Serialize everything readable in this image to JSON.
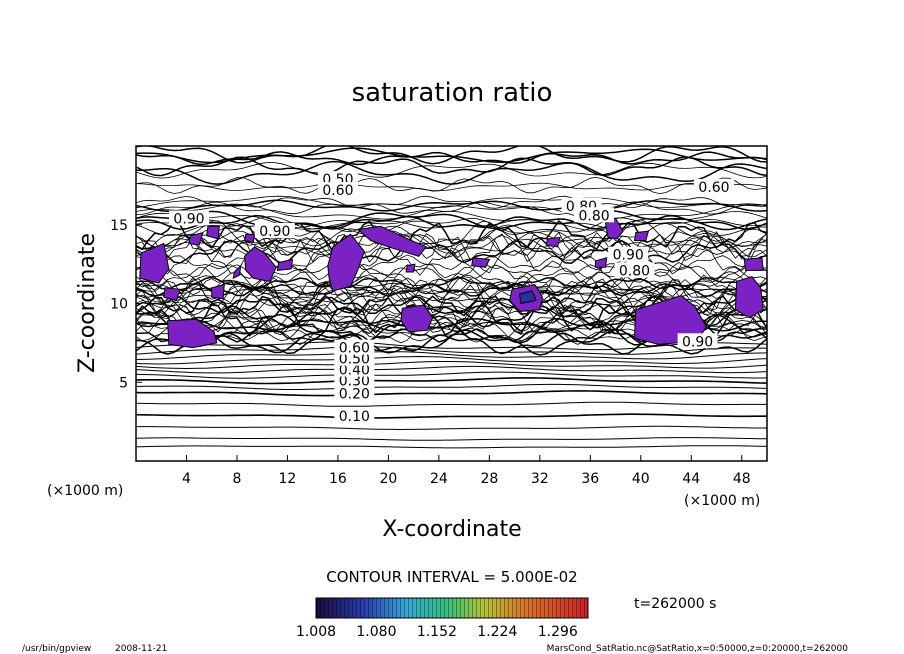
{
  "chart_data": {
    "type": "contour",
    "title": "saturation ratio",
    "xlabel": "X-coordinate",
    "ylabel": "Z-coordinate",
    "x_unit_left": "(×1000 m)",
    "x_unit_right": "(×1000 m)",
    "xlim": [
      0,
      50
    ],
    "ylim": [
      0,
      20
    ],
    "x_ticks": [
      4,
      8,
      12,
      16,
      20,
      24,
      28,
      32,
      36,
      40,
      44,
      48
    ],
    "y_ticks": [
      5,
      10,
      15
    ],
    "grid": false,
    "contour_interval_text": "CONTOUR INTERVAL = 5.000E-02",
    "time_text": "t=262000 s",
    "colorbar": {
      "range": [
        1.008,
        1.332
      ],
      "tick_labels": [
        "1.008",
        "1.080",
        "1.152",
        "1.224",
        "1.296"
      ]
    },
    "contour_labels": [
      {
        "text": "0.10",
        "x": 17.3,
        "y": 2.85
      },
      {
        "text": "0.20",
        "x": 17.3,
        "y": 4.3
      },
      {
        "text": "0.30",
        "x": 17.3,
        "y": 5.1
      },
      {
        "text": "0.40",
        "x": 17.3,
        "y": 5.8
      },
      {
        "text": "0.50",
        "x": 17.3,
        "y": 6.5
      },
      {
        "text": "0.60",
        "x": 17.3,
        "y": 7.2
      },
      {
        "text": "0.90",
        "x": 4.2,
        "y": 15.4
      },
      {
        "text": "0.90",
        "x": 11.0,
        "y": 14.6
      },
      {
        "text": "0.50",
        "x": 16.0,
        "y": 17.9
      },
      {
        "text": "0.60",
        "x": 16.0,
        "y": 17.2
      },
      {
        "text": "0.80",
        "x": 35.3,
        "y": 16.2
      },
      {
        "text": "0.80",
        "x": 36.3,
        "y": 15.6
      },
      {
        "text": "0.60",
        "x": 45.8,
        "y": 17.4
      },
      {
        "text": "0.90",
        "x": 39.0,
        "y": 13.1
      },
      {
        "text": "0.80",
        "x": 39.5,
        "y": 12.1
      },
      {
        "text": "0.90",
        "x": 44.5,
        "y": 7.6
      }
    ],
    "supersaturated_regions": [
      {
        "color": "#7b22c4",
        "points": [
          [
            0.4,
            13.2
          ],
          [
            2.2,
            13.8
          ],
          [
            2.6,
            12.2
          ],
          [
            1.8,
            11.3
          ],
          [
            0.3,
            11.6
          ]
        ]
      },
      {
        "color": "#7b22c4",
        "points": [
          [
            2.3,
            11.0
          ],
          [
            3.5,
            10.9
          ],
          [
            3.2,
            10.2
          ],
          [
            2.2,
            10.4
          ]
        ]
      },
      {
        "color": "#7b22c4",
        "points": [
          [
            2.5,
            8.9
          ],
          [
            4.8,
            9.0
          ],
          [
            6.2,
            8.2
          ],
          [
            6.4,
            7.5
          ],
          [
            4.5,
            7.2
          ],
          [
            2.6,
            7.4
          ]
        ]
      },
      {
        "color": "#7b22c4",
        "points": [
          [
            4.3,
            14.3
          ],
          [
            5.3,
            14.5
          ],
          [
            5.0,
            13.7
          ],
          [
            4.2,
            13.8
          ]
        ]
      },
      {
        "color": "#7b22c4",
        "points": [
          [
            5.7,
            14.9
          ],
          [
            6.6,
            14.9
          ],
          [
            6.5,
            14.1
          ],
          [
            5.6,
            14.3
          ]
        ]
      },
      {
        "color": "#7b22c4",
        "points": [
          [
            7.8,
            12.0
          ],
          [
            8.3,
            12.4
          ],
          [
            8.2,
            11.8
          ],
          [
            7.7,
            11.6
          ]
        ]
      },
      {
        "color": "#7b22c4",
        "points": [
          [
            6.0,
            11.0
          ],
          [
            7.0,
            11.2
          ],
          [
            6.9,
            10.3
          ],
          [
            6.0,
            10.4
          ]
        ]
      },
      {
        "color": "#7b22c4",
        "points": [
          [
            8.6,
            13.0
          ],
          [
            9.4,
            13.6
          ],
          [
            10.2,
            13.2
          ],
          [
            11.1,
            12.3
          ],
          [
            10.6,
            11.4
          ],
          [
            9.3,
            11.6
          ],
          [
            8.7,
            12.1
          ]
        ]
      },
      {
        "color": "#7b22c4",
        "points": [
          [
            11.3,
            12.6
          ],
          [
            12.4,
            12.8
          ],
          [
            12.3,
            12.2
          ],
          [
            11.2,
            12.1
          ]
        ]
      },
      {
        "color": "#7b22c4",
        "points": [
          [
            8.7,
            14.4
          ],
          [
            9.4,
            14.4
          ],
          [
            9.3,
            13.9
          ],
          [
            8.6,
            14.0
          ]
        ]
      },
      {
        "color": "#7b22c4",
        "points": [
          [
            15.6,
            13.6
          ],
          [
            17.0,
            14.4
          ],
          [
            18.1,
            13.3
          ],
          [
            17.5,
            12.0
          ],
          [
            17.0,
            11.1
          ],
          [
            15.6,
            10.8
          ],
          [
            15.3,
            11.6
          ],
          [
            15.2,
            12.4
          ]
        ]
      },
      {
        "color": "#7b22c4",
        "points": [
          [
            17.6,
            14.7
          ],
          [
            19.4,
            14.9
          ],
          [
            21.8,
            14.0
          ],
          [
            23.0,
            13.6
          ],
          [
            22.4,
            13.0
          ],
          [
            20.0,
            13.6
          ],
          [
            18.6,
            14.0
          ]
        ]
      },
      {
        "color": "#7b22c4",
        "points": [
          [
            21.5,
            12.4
          ],
          [
            22.1,
            12.5
          ],
          [
            22.0,
            12.0
          ],
          [
            21.4,
            12.0
          ]
        ]
      },
      {
        "color": "#7b22c4",
        "points": [
          [
            26.7,
            12.9
          ],
          [
            28.0,
            12.8
          ],
          [
            27.7,
            12.3
          ],
          [
            26.6,
            12.4
          ]
        ]
      },
      {
        "color": "#7b22c4",
        "points": [
          [
            21.1,
            9.7
          ],
          [
            22.8,
            9.9
          ],
          [
            23.5,
            9.1
          ],
          [
            23.1,
            8.3
          ],
          [
            21.6,
            8.2
          ],
          [
            21.0,
            8.9
          ]
        ]
      },
      {
        "color": "#7b22c4",
        "points": [
          [
            29.8,
            10.9
          ],
          [
            31.6,
            11.2
          ],
          [
            32.2,
            10.4
          ],
          [
            32.0,
            9.6
          ],
          [
            30.4,
            9.5
          ],
          [
            29.6,
            10.2
          ]
        ]
      },
      {
        "color": "#2a2f9e",
        "points": [
          [
            30.4,
            10.6
          ],
          [
            31.4,
            10.8
          ],
          [
            31.7,
            10.2
          ],
          [
            30.5,
            10.0
          ]
        ]
      },
      {
        "color": "#7b22c4",
        "points": [
          [
            32.6,
            14.1
          ],
          [
            33.6,
            14.2
          ],
          [
            33.4,
            13.6
          ],
          [
            32.5,
            13.7
          ]
        ]
      },
      {
        "color": "#7b22c4",
        "points": [
          [
            37.2,
            15.1
          ],
          [
            38.0,
            15.4
          ],
          [
            38.6,
            14.6
          ],
          [
            38.1,
            14.1
          ],
          [
            37.4,
            14.2
          ]
        ]
      },
      {
        "color": "#7b22c4",
        "points": [
          [
            36.4,
            12.7
          ],
          [
            37.3,
            12.9
          ],
          [
            37.2,
            12.3
          ],
          [
            36.4,
            12.3
          ]
        ]
      },
      {
        "color": "#7b22c4",
        "points": [
          [
            39.6,
            14.5
          ],
          [
            40.6,
            14.6
          ],
          [
            40.4,
            14.0
          ],
          [
            39.5,
            14.0
          ]
        ]
      },
      {
        "color": "#7b22c4",
        "points": [
          [
            39.6,
            9.6
          ],
          [
            41.2,
            10.0
          ],
          [
            43.2,
            10.5
          ],
          [
            44.3,
            9.8
          ],
          [
            45.2,
            8.5
          ],
          [
            44.4,
            7.6
          ],
          [
            41.4,
            7.4
          ],
          [
            39.5,
            7.8
          ]
        ]
      },
      {
        "color": "#7b22c4",
        "points": [
          [
            48.2,
            12.8
          ],
          [
            49.6,
            12.9
          ],
          [
            49.7,
            12.1
          ],
          [
            48.3,
            12.1
          ]
        ]
      },
      {
        "color": "#7b22c4",
        "points": [
          [
            47.6,
            11.4
          ],
          [
            48.8,
            11.7
          ],
          [
            49.5,
            11.0
          ],
          [
            49.7,
            9.6
          ],
          [
            48.6,
            9.1
          ],
          [
            47.5,
            9.6
          ]
        ]
      }
    ]
  },
  "footer": {
    "program": "/usr/bin/gpview",
    "date": "2008-11-21",
    "source": "MarsCond_SatRatio.nc@SatRatio,x=0:50000,z=0:20000,t=262000"
  }
}
